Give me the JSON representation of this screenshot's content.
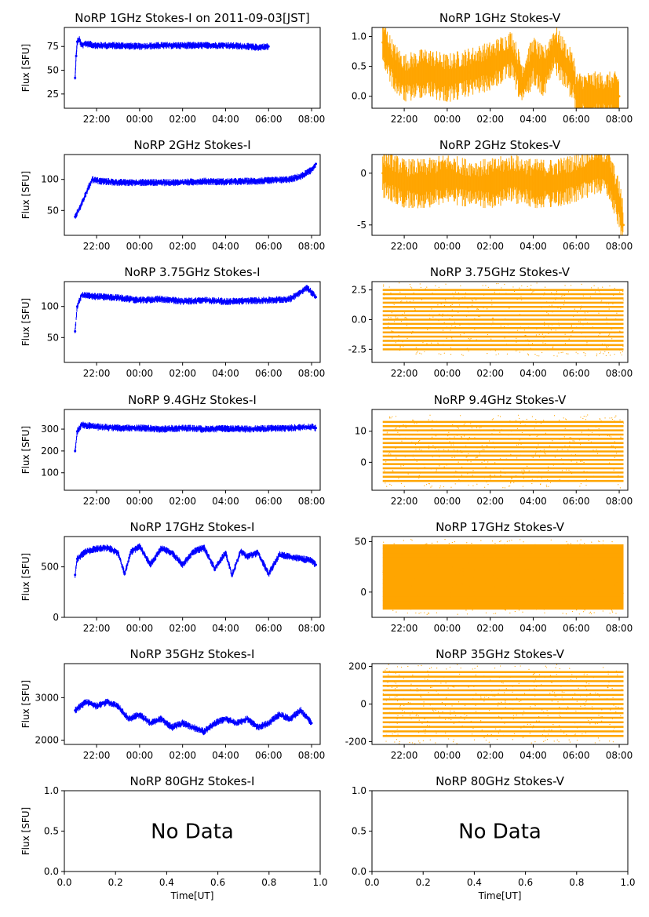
{
  "chart_data": [
    {
      "id": "p1i",
      "type": "scatter",
      "title": "NoRP 1GHz Stokes-I on 2011-09-03[JST]",
      "ylabel": "Flux [SFU]",
      "xlabel": "",
      "xticks": [
        "22:00",
        "00:00",
        "02:00",
        "04:00",
        "06:00",
        "08:00"
      ],
      "xlim": [
        20.5,
        32.4
      ],
      "ylim": [
        10,
        95
      ],
      "yticks": [
        25,
        50,
        75
      ],
      "color": "#0000ff",
      "x": [
        21.0,
        21.05,
        21.1,
        21.2,
        21.3,
        21.5,
        22.0,
        23.0,
        24.0,
        25.0,
        26.0,
        27.0,
        28.0,
        29.0,
        29.5,
        30.0
      ],
      "y": [
        42,
        65,
        80,
        82,
        76,
        78,
        76,
        76,
        75,
        76,
        76,
        76,
        76,
        75,
        74,
        75
      ]
    },
    {
      "id": "p1v",
      "type": "scatter",
      "title": "NoRP 1GHz Stokes-V",
      "ylabel": "",
      "xlabel": "",
      "xticks": [
        "22:00",
        "00:00",
        "02:00",
        "04:00",
        "06:00",
        "08:00"
      ],
      "xlim": [
        20.5,
        32.4
      ],
      "ylim": [
        -0.2,
        1.15
      ],
      "yticks": [
        0.0,
        0.5,
        1.0
      ],
      "color": "#ffa500",
      "x": [
        21.0,
        21.5,
        22.0,
        23.0,
        24.0,
        25.0,
        26.0,
        27.0,
        27.5,
        28.0,
        28.5,
        29.0,
        29.9,
        30.0,
        31.0,
        32.0
      ],
      "y": [
        0.9,
        0.5,
        0.3,
        0.4,
        0.3,
        0.4,
        0.5,
        0.7,
        0.2,
        0.6,
        0.4,
        0.8,
        0.3,
        0.0,
        0.0,
        0.0
      ]
    },
    {
      "id": "p2i",
      "type": "scatter",
      "title": "NoRP 2GHz Stokes-I",
      "ylabel": "Flux [SFU]",
      "xlabel": "",
      "xticks": [
        "22:00",
        "00:00",
        "02:00",
        "04:00",
        "06:00",
        "08:00"
      ],
      "xlim": [
        20.5,
        32.4
      ],
      "ylim": [
        10,
        140
      ],
      "yticks": [
        50,
        100
      ],
      "color": "#0000ff",
      "x": [
        21.0,
        21.3,
        21.6,
        21.8,
        22.0,
        23.0,
        24.0,
        25.0,
        26.0,
        27.0,
        28.0,
        29.0,
        30.0,
        31.0,
        31.5,
        32.0,
        32.2
      ],
      "y": [
        40,
        60,
        85,
        100,
        98,
        95,
        95,
        95,
        95,
        97,
        96,
        97,
        98,
        100,
        105,
        115,
        125
      ]
    },
    {
      "id": "p2v",
      "type": "scatter",
      "title": "NoRP 2GHz Stokes-V",
      "ylabel": "",
      "xlabel": "",
      "xticks": [
        "22:00",
        "00:00",
        "02:00",
        "04:00",
        "06:00",
        "08:00"
      ],
      "xlim": [
        20.5,
        32.4
      ],
      "ylim": [
        -6,
        1.8
      ],
      "yticks": [
        -5,
        0
      ],
      "color": "#ffa500",
      "x": [
        21.0,
        22.0,
        23.0,
        24.0,
        25.0,
        26.0,
        27.0,
        28.0,
        29.0,
        30.0,
        30.5,
        31.0,
        31.5,
        32.0,
        32.2
      ],
      "y": [
        0,
        -1,
        -1,
        -0.5,
        -1,
        -1,
        -0.5,
        -1,
        -1,
        -0.5,
        0,
        0.5,
        0,
        -3,
        -5
      ]
    },
    {
      "id": "p3i",
      "type": "scatter",
      "title": "NoRP 3.75GHz Stokes-I",
      "ylabel": "Flux [SFU]",
      "xlabel": "",
      "xticks": [
        "22:00",
        "00:00",
        "02:00",
        "04:00",
        "06:00",
        "08:00"
      ],
      "xlim": [
        20.5,
        32.4
      ],
      "ylim": [
        10,
        140
      ],
      "yticks": [
        50,
        100
      ],
      "color": "#0000ff",
      "x": [
        21.0,
        21.1,
        21.3,
        22.0,
        23.0,
        24.0,
        25.0,
        26.0,
        27.0,
        28.0,
        29.0,
        30.0,
        31.0,
        31.8,
        32.2
      ],
      "y": [
        60,
        100,
        118,
        116,
        114,
        110,
        112,
        108,
        110,
        108,
        109,
        110,
        112,
        130,
        115
      ]
    },
    {
      "id": "p3v",
      "type": "scatter",
      "title": "NoRP 3.75GHz Stokes-V",
      "ylabel": "",
      "xlabel": "",
      "xticks": [
        "22:00",
        "00:00",
        "02:00",
        "04:00",
        "06:00",
        "08:00"
      ],
      "xlim": [
        20.5,
        32.4
      ],
      "ylim": [
        -3.6,
        3.2
      ],
      "yticks": [
        -2.5,
        0.0,
        2.5
      ],
      "color": "#ffa500",
      "x": [
        21.0,
        32.2
      ],
      "y": [
        -2.5,
        2.5
      ]
    },
    {
      "id": "p4i",
      "type": "scatter",
      "title": "NoRP 9.4GHz Stokes-I",
      "ylabel": "Flux [SFU]",
      "xlabel": "",
      "xticks": [
        "22:00",
        "00:00",
        "02:00",
        "04:00",
        "06:00",
        "08:00"
      ],
      "xlim": [
        20.5,
        32.4
      ],
      "ylim": [
        20,
        390
      ],
      "yticks": [
        100,
        200,
        300
      ],
      "color": "#0000ff",
      "x": [
        21.0,
        21.1,
        21.3,
        22.0,
        23.0,
        24.0,
        25.0,
        26.0,
        27.0,
        28.0,
        29.0,
        30.0,
        31.0,
        32.0,
        32.2
      ],
      "y": [
        200,
        290,
        320,
        310,
        305,
        305,
        300,
        305,
        300,
        302,
        300,
        303,
        305,
        310,
        305
      ]
    },
    {
      "id": "p4v",
      "type": "scatter",
      "title": "NoRP 9.4GHz Stokes-V",
      "ylabel": "",
      "xlabel": "",
      "xticks": [
        "22:00",
        "00:00",
        "02:00",
        "04:00",
        "06:00",
        "08:00"
      ],
      "xlim": [
        20.5,
        32.4
      ],
      "ylim": [
        -9,
        17
      ],
      "yticks": [
        0,
        10
      ],
      "color": "#ffa500",
      "x": [
        21.0,
        32.2
      ],
      "y": [
        -6,
        13
      ]
    },
    {
      "id": "p5i",
      "type": "scatter",
      "title": "NoRP 17GHz Stokes-I",
      "ylabel": "Flux [SFU]",
      "xlabel": "",
      "xticks": [
        "22:00",
        "00:00",
        "02:00",
        "04:00",
        "06:00",
        "08:00"
      ],
      "xlim": [
        20.5,
        32.4
      ],
      "ylim": [
        0,
        800
      ],
      "yticks": [
        0,
        500
      ],
      "color": "#0000ff",
      "x": [
        21.0,
        21.1,
        21.5,
        22.0,
        22.5,
        23.0,
        23.3,
        23.6,
        24.0,
        24.5,
        25.0,
        25.5,
        26.0,
        26.5,
        27.0,
        27.5,
        28.0,
        28.3,
        28.7,
        29.0,
        29.5,
        30.0,
        30.5,
        31.0,
        31.5,
        32.0,
        32.2
      ],
      "y": [
        420,
        580,
        650,
        680,
        690,
        640,
        430,
        650,
        700,
        520,
        680,
        640,
        520,
        650,
        690,
        480,
        640,
        420,
        650,
        600,
        640,
        430,
        620,
        600,
        580,
        560,
        520
      ]
    },
    {
      "id": "p5v",
      "type": "scatter",
      "title": "NoRP 17GHz Stokes-V",
      "ylabel": "",
      "xlabel": "",
      "xticks": [
        "22:00",
        "00:00",
        "02:00",
        "04:00",
        "06:00",
        "08:00"
      ],
      "xlim": [
        20.5,
        32.4
      ],
      "ylim": [
        -25,
        55
      ],
      "yticks": [
        0,
        50
      ],
      "color": "#ffa500",
      "x": [
        21.0,
        32.2
      ],
      "y": [
        -15,
        45
      ]
    },
    {
      "id": "p6i",
      "type": "scatter",
      "title": "NoRP 35GHz Stokes-I",
      "ylabel": "Flux [SFU]",
      "xlabel": "",
      "xticks": [
        "22:00",
        "00:00",
        "02:00",
        "04:00",
        "06:00",
        "08:00"
      ],
      "xlim": [
        20.5,
        32.4
      ],
      "ylim": [
        1900,
        3800
      ],
      "yticks": [
        2000,
        3000
      ],
      "color": "#0000ff",
      "x": [
        21.0,
        21.5,
        22.0,
        22.5,
        23.0,
        23.5,
        24.0,
        24.5,
        25.0,
        25.5,
        26.0,
        26.5,
        27.0,
        27.5,
        28.0,
        28.5,
        29.0,
        29.5,
        30.0,
        30.5,
        31.0,
        31.5,
        32.0
      ],
      "y": [
        2700,
        2900,
        2800,
        2900,
        2800,
        2500,
        2600,
        2400,
        2500,
        2300,
        2400,
        2300,
        2200,
        2400,
        2500,
        2400,
        2500,
        2300,
        2400,
        2600,
        2500,
        2700,
        2400
      ]
    },
    {
      "id": "p6v",
      "type": "scatter",
      "title": "NoRP 35GHz Stokes-V",
      "ylabel": "",
      "xlabel": "",
      "xticks": [
        "22:00",
        "00:00",
        "02:00",
        "04:00",
        "06:00",
        "08:00"
      ],
      "xlim": [
        20.5,
        32.4
      ],
      "ylim": [
        -215,
        215
      ],
      "yticks": [
        -200,
        0,
        200
      ],
      "color": "#ffa500",
      "x": [
        21.0,
        32.2
      ],
      "y": [
        -170,
        170
      ]
    },
    {
      "id": "p7i",
      "type": "scatter",
      "title": "NoRP 80GHz Stokes-I",
      "ylabel": "Flux [SFU]",
      "xlabel": "Time[UT]",
      "xticks": [
        "0.0",
        "0.2",
        "0.4",
        "0.6",
        "0.8",
        "1.0"
      ],
      "xlim": [
        0,
        1
      ],
      "ylim": [
        0,
        1
      ],
      "yticks": [
        0.0,
        0.5,
        1.0
      ],
      "nodata": "No Data",
      "x": [],
      "y": []
    },
    {
      "id": "p7v",
      "type": "scatter",
      "title": "NoRP 80GHz Stokes-V",
      "ylabel": "",
      "xlabel": "Time[UT]",
      "xticks": [
        "0.0",
        "0.2",
        "0.4",
        "0.6",
        "0.8",
        "1.0"
      ],
      "xlim": [
        0,
        1
      ],
      "ylim": [
        0,
        1
      ],
      "yticks": [
        0.0,
        0.5,
        1.0
      ],
      "nodata": "No Data",
      "x": [],
      "y": []
    }
  ]
}
